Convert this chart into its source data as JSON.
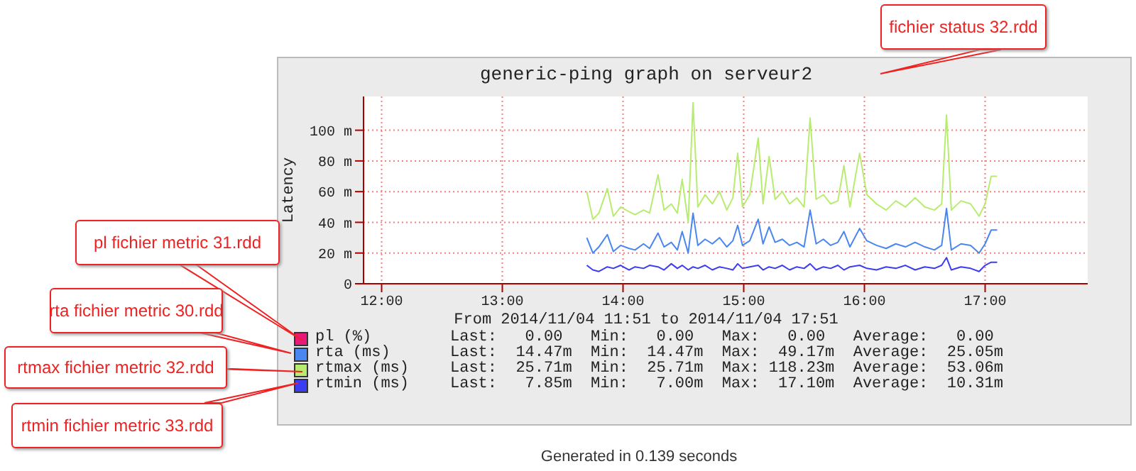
{
  "chart_data": {
    "type": "line",
    "title": "generic-ping graph on serveur2",
    "subtitle": "From 2014/11/04 11:51 to 2014/11/04 17:51",
    "ylabel": "Latency",
    "x": [
      13.7,
      13.75,
      13.8,
      13.87,
      13.92,
      13.98,
      14.05,
      14.1,
      14.17,
      14.22,
      14.29,
      14.34,
      14.4,
      14.45,
      14.49,
      14.54,
      14.58,
      14.62,
      14.68,
      14.74,
      14.8,
      14.86,
      14.91,
      14.95,
      14.99,
      15.05,
      15.12,
      15.16,
      15.21,
      15.26,
      15.32,
      15.38,
      15.44,
      15.5,
      15.55,
      15.6,
      15.66,
      15.72,
      15.78,
      15.83,
      15.88,
      15.96,
      16.02,
      16.1,
      16.18,
      16.26,
      16.34,
      16.42,
      16.5,
      16.58,
      16.64,
      16.68,
      16.72,
      16.8,
      16.88,
      16.95,
      17.0,
      17.05,
      17.1
    ],
    "series": [
      {
        "name": "pl (%)",
        "color": "#e8197a",
        "values": [
          null,
          null,
          null,
          null,
          null,
          null,
          null,
          null,
          null,
          null,
          null,
          null,
          null,
          null,
          null,
          null,
          null,
          null,
          null,
          null,
          null,
          null,
          null,
          null,
          null,
          null,
          null,
          null,
          null,
          null,
          null,
          null,
          null,
          null,
          null,
          null,
          null,
          null,
          null,
          null,
          null,
          null,
          null,
          null,
          null,
          null,
          null,
          null,
          null,
          null,
          null,
          null,
          null,
          null,
          null,
          null,
          null,
          null,
          null
        ]
      },
      {
        "name": "rta (ms)",
        "color": "#4a86f0",
        "values": [
          30,
          20,
          24,
          32,
          21,
          25,
          23,
          22,
          26,
          23,
          33,
          24,
          27,
          22,
          34,
          20,
          46,
          25,
          29,
          26,
          30,
          24,
          28,
          38,
          25,
          28,
          42,
          26,
          37,
          27,
          29,
          25,
          27,
          24,
          48,
          26,
          29,
          25,
          27,
          34,
          24,
          36,
          28,
          25,
          23,
          26,
          24,
          27,
          24,
          22,
          25,
          49,
          22,
          26,
          25,
          20,
          26,
          35,
          35
        ]
      },
      {
        "name": "rtmax (ms)",
        "color": "#b8ec70",
        "values": [
          60,
          42,
          46,
          62,
          44,
          50,
          47,
          45,
          48,
          46,
          71,
          48,
          52,
          46,
          68,
          40,
          118,
          50,
          58,
          52,
          60,
          48,
          56,
          85,
          50,
          58,
          95,
          52,
          83,
          55,
          60,
          52,
          56,
          50,
          108,
          55,
          58,
          52,
          54,
          77,
          50,
          85,
          58,
          52,
          48,
          54,
          50,
          56,
          50,
          48,
          52,
          110,
          48,
          54,
          52,
          44,
          52,
          70,
          70
        ]
      },
      {
        "name": "rtmin (ms)",
        "color": "#3c3cf0",
        "values": [
          12,
          9,
          8,
          11,
          10,
          12,
          9,
          11,
          10,
          12,
          11,
          9,
          13,
          10,
          12,
          9,
          11,
          10,
          12,
          9,
          11,
          10,
          9,
          13,
          10,
          11,
          12,
          9,
          11,
          10,
          12,
          9,
          11,
          10,
          13,
          9,
          11,
          10,
          12,
          9,
          11,
          12,
          10,
          9,
          11,
          10,
          12,
          9,
          11,
          10,
          12,
          17,
          9,
          11,
          10,
          8,
          12,
          14,
          14
        ]
      }
    ],
    "xlim": [
      11.85,
      17.85
    ],
    "xticks": [
      {
        "value": 12,
        "label": "12:00"
      },
      {
        "value": 13,
        "label": "13:00"
      },
      {
        "value": 14,
        "label": "14:00"
      },
      {
        "value": 15,
        "label": "15:00"
      },
      {
        "value": 16,
        "label": "16:00"
      },
      {
        "value": 17,
        "label": "17:00"
      }
    ],
    "ylim": [
      0,
      122
    ],
    "yticks": [
      0,
      {
        "value": 20,
        "label": "20 m"
      },
      {
        "value": 40,
        "label": "40 m"
      },
      {
        "value": 60,
        "label": "60 m"
      },
      {
        "value": 80,
        "label": "80 m"
      },
      {
        "value": 100,
        "label": "100 m"
      }
    ],
    "grid": true,
    "legend": "bottom",
    "marker": "none",
    "line_style": "solid",
    "annotations": [
      "fichier status 32.rdd",
      "pl fichier metric 31.rdd",
      "rta fichier metric 30.rdd",
      "rtmax fichier metric 32.rdd",
      "rtmin fichier metric 33.rdd",
      "Last:   0.00   Min:   0.00   Max:   0.00   Average:   0.00",
      "Last:  14.47m  Min:  14.47m  Max:  49.17m  Average:  25.05m",
      "Last:  25.71m  Min:  25.71m  Max: 118.23m  Average:  53.06m",
      "Last:   7.85m  Min:   7.00m  Max:  17.10m  Average:  10.31m",
      "Generated in 0.139 seconds"
    ]
  }
}
